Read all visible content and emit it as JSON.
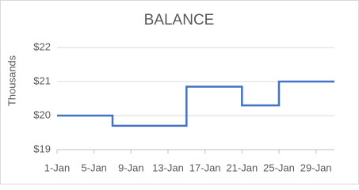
{
  "chart_data": {
    "type": "line",
    "step": "post",
    "title": "BALANCE",
    "y_label": "Thousands",
    "x": [
      1,
      7,
      15,
      21,
      25,
      31
    ],
    "values": [
      20,
      19.7,
      20.85,
      20.3,
      21,
      21
    ],
    "color": "#4472c4",
    "xlim": [
      1,
      31
    ],
    "xticks": [
      {
        "value": 1,
        "label": "1-Jan"
      },
      {
        "value": 5,
        "label": "5-Jan"
      },
      {
        "value": 9,
        "label": "9-Jan"
      },
      {
        "value": 13,
        "label": "13-Jan"
      },
      {
        "value": 17,
        "label": "17-Jan"
      },
      {
        "value": 21,
        "label": "21-Jan"
      },
      {
        "value": 25,
        "label": "25-Jan"
      },
      {
        "value": 29,
        "label": "29-Jan"
      }
    ],
    "ylim": [
      19,
      22
    ],
    "yticks": [
      {
        "value": 19,
        "label": "$19"
      },
      {
        "value": 20,
        "label": "$20"
      },
      {
        "value": 21,
        "label": "$21"
      },
      {
        "value": 22,
        "label": "$22"
      }
    ],
    "grid": true
  }
}
